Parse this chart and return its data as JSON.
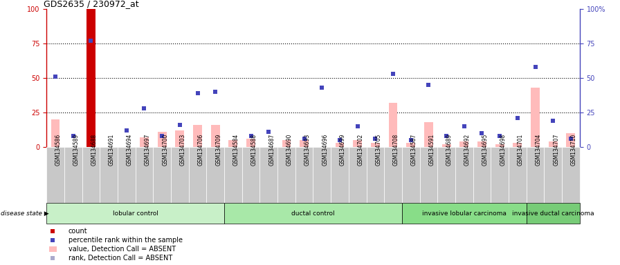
{
  "title": "GDS2635 / 230972_at",
  "samples": [
    "GSM134586",
    "GSM134589",
    "GSM134688",
    "GSM134691",
    "GSM134694",
    "GSM134697",
    "GSM134700",
    "GSM134703",
    "GSM134706",
    "GSM134709",
    "GSM134584",
    "GSM134588",
    "GSM134687",
    "GSM134690",
    "GSM134693",
    "GSM134696",
    "GSM134699",
    "GSM134702",
    "GSM134705",
    "GSM134708",
    "GSM134587",
    "GSM134591",
    "GSM134689",
    "GSM134692",
    "GSM134695",
    "GSM134698",
    "GSM134701",
    "GSM134704",
    "GSM134707",
    "GSM134710"
  ],
  "count_values": [
    0,
    0,
    100,
    0,
    0,
    0,
    0,
    0,
    0,
    0,
    0,
    0,
    0,
    0,
    0,
    0,
    0,
    0,
    0,
    0,
    0,
    0,
    0,
    0,
    0,
    0,
    0,
    0,
    0,
    0
  ],
  "rank_values": [
    51,
    8,
    77,
    0,
    12,
    28,
    8,
    16,
    39,
    40,
    0,
    8,
    11,
    0,
    6,
    43,
    5,
    15,
    6,
    53,
    5,
    45,
    8,
    15,
    10,
    8,
    21,
    58,
    19,
    6
  ],
  "value_absent": [
    20,
    0,
    0,
    0,
    0,
    7,
    11,
    12,
    16,
    16,
    5,
    6,
    0,
    5,
    5,
    0,
    3,
    5,
    3,
    32,
    3,
    18,
    2,
    4,
    4,
    2,
    3,
    43,
    4,
    10
  ],
  "rank_absent": [
    0,
    0,
    0,
    0,
    0,
    0,
    0,
    0,
    0,
    0,
    0,
    0,
    0,
    0,
    0,
    0,
    0,
    0,
    0,
    0,
    0,
    0,
    0,
    0,
    0,
    0,
    0,
    0,
    0,
    0
  ],
  "groups": [
    {
      "label": "lobular control",
      "start": 0,
      "end": 9,
      "color": "#c8f0c8"
    },
    {
      "label": "ductal control",
      "start": 10,
      "end": 19,
      "color": "#a8e8a8"
    },
    {
      "label": "invasive lobular carcinoma",
      "start": 20,
      "end": 26,
      "color": "#88dd88"
    },
    {
      "label": "invasive ductal carcinoma",
      "start": 27,
      "end": 29,
      "color": "#77cc77"
    }
  ],
  "ylim": [
    0,
    100
  ],
  "count_color": "#cc0000",
  "rank_color": "#4444bb",
  "value_absent_color": "#ffbbbb",
  "rank_absent_color": "#aaaacc",
  "bg_color": "#c8c8c8",
  "dotted_lines": [
    25,
    50,
    75
  ]
}
